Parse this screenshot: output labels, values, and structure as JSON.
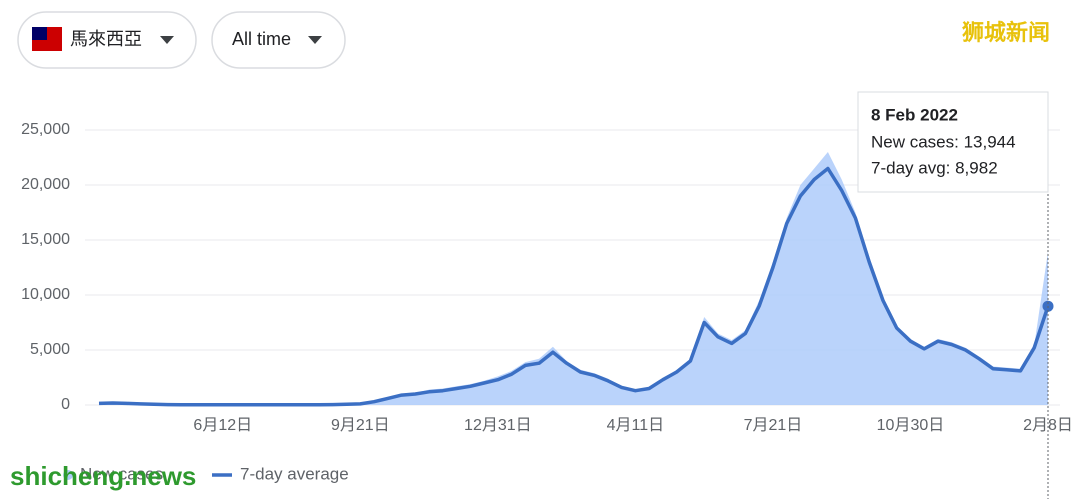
{
  "controls": {
    "region": "馬來西亞",
    "range": "All time"
  },
  "watermarks": {
    "top": "狮城新闻",
    "bottom": "shicheng.news"
  },
  "tooltip": {
    "date": "8 Feb 2022",
    "new_cases": "New cases: 13,944",
    "avg": "7-day avg: 8,982"
  },
  "chart_data": {
    "type": "area-line",
    "categories": [
      null,
      null,
      null,
      null,
      null,
      null,
      null,
      null,
      null,
      "6月12日",
      null,
      null,
      null,
      null,
      null,
      null,
      null,
      null,
      null,
      "9月21日",
      null,
      null,
      null,
      null,
      null,
      null,
      null,
      null,
      null,
      "12月31日",
      null,
      null,
      null,
      null,
      null,
      null,
      null,
      null,
      null,
      "4月11日",
      null,
      null,
      null,
      null,
      null,
      null,
      null,
      null,
      null,
      "7月21日",
      null,
      null,
      null,
      null,
      null,
      null,
      null,
      null,
      null,
      "10月30日",
      null,
      null,
      null,
      null,
      null,
      null,
      null,
      null,
      null,
      "2月8日"
    ],
    "series": [
      {
        "name": "New cases",
        "color": "#aecbfa",
        "values": [
          180,
          200,
          160,
          100,
          60,
          40,
          30,
          20,
          20,
          20,
          20,
          20,
          20,
          20,
          20,
          20,
          30,
          40,
          60,
          150,
          350,
          700,
          1000,
          1100,
          1400,
          1500,
          1700,
          1900,
          2200,
          2600,
          3100,
          3900,
          4200,
          5300,
          4000,
          3200,
          2900,
          2400,
          1700,
          1400,
          1600,
          2400,
          3200,
          4200,
          8000,
          6500,
          5900,
          6800,
          9500,
          13000,
          17000,
          20000,
          21500,
          23000,
          20500,
          17500,
          13500,
          9800,
          7200,
          6000,
          5300,
          6000,
          5700,
          5200,
          4400,
          3500,
          3400,
          3300,
          5400,
          13944
        ]
      },
      {
        "name": "7-day average",
        "color": "#3b6fc4",
        "values": [
          150,
          180,
          150,
          100,
          60,
          40,
          30,
          20,
          20,
          20,
          20,
          20,
          20,
          20,
          20,
          20,
          30,
          40,
          60,
          100,
          300,
          600,
          900,
          1000,
          1200,
          1300,
          1500,
          1700,
          2000,
          2300,
          2800,
          3600,
          3800,
          4800,
          3800,
          3000,
          2700,
          2200,
          1600,
          1300,
          1500,
          2300,
          3000,
          4000,
          7500,
          6200,
          5600,
          6500,
          9000,
          12500,
          16500,
          19000,
          20500,
          21500,
          19500,
          17000,
          13000,
          9500,
          7000,
          5800,
          5100,
          5800,
          5500,
          5000,
          4200,
          3300,
          3200,
          3100,
          5200,
          8982
        ]
      }
    ],
    "ylim": [
      0,
      25000
    ],
    "yticks": [
      0,
      {
        "value": 5000,
        "label": "5,000"
      },
      {
        "value": 10000,
        "label": "10,000"
      },
      {
        "value": 15000,
        "label": "15,000"
      },
      {
        "value": 20000,
        "label": "20,000"
      },
      {
        "value": 25000,
        "label": "25,000"
      }
    ],
    "grid": true
  }
}
